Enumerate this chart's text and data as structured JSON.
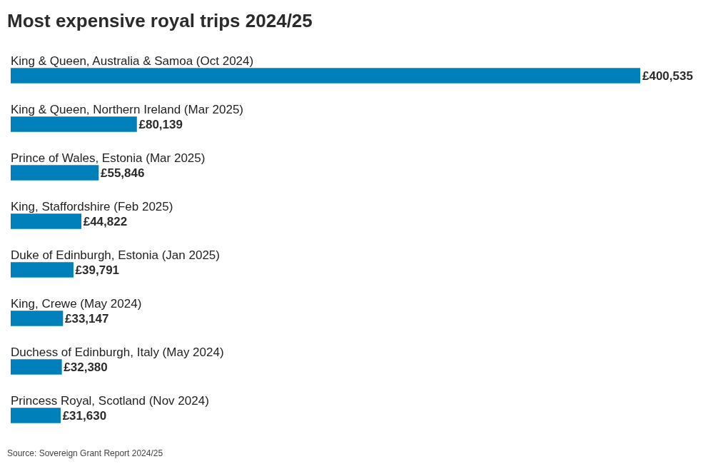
{
  "chart_data": {
    "type": "bar",
    "orientation": "horizontal",
    "title": "Most expensive royal trips 2024/25",
    "categories": [
      "King & Queen, Australia & Samoa (Oct 2024)",
      "King & Queen, Northern Ireland (Mar 2025)",
      "Prince of Wales, Estonia (Mar 2025)",
      "King, Staffordshire (Feb 2025)",
      "Duke of Edinburgh, Estonia (Jan 2025)",
      "King, Crewe (May 2024)",
      "Duchess of Edinburgh, Italy (May 2024)",
      "Princess Royal, Scotland (Nov 2024)"
    ],
    "values": [
      400535,
      80139,
      55846,
      44822,
      39791,
      33147,
      32380,
      31630
    ],
    "value_labels": [
      "£400,535",
      "£80,139",
      "£55,846",
      "£44,822",
      "£39,791",
      "£33,147",
      "£32,380",
      "£31,630"
    ],
    "color": "#0080bb",
    "tick_labels": "y",
    "annotations": [
      "Source: Sovereign Grant Report 2024/25"
    ]
  }
}
